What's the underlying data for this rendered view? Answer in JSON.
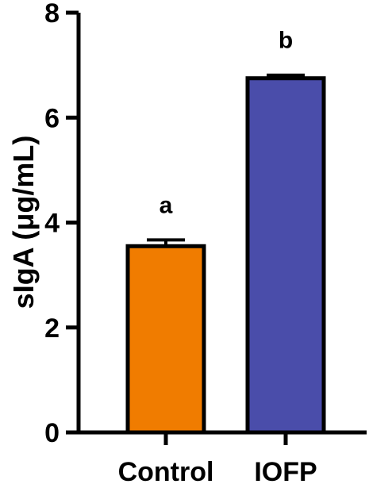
{
  "chart_data": {
    "type": "bar",
    "categories": [
      "Control",
      "IOFP"
    ],
    "values": [
      3.55,
      6.75
    ],
    "errors": [
      0.12,
      0.06
    ],
    "significance_labels": [
      "a",
      "b"
    ],
    "bar_colors": [
      "#F07C00",
      "#4A4DAA"
    ],
    "ylabel": "sIgA (μg/mL)",
    "xlabel": "",
    "title": "",
    "ylim": [
      0,
      8
    ],
    "yticks": [
      0,
      2,
      4,
      6,
      8
    ],
    "grid": false,
    "legend": false
  }
}
